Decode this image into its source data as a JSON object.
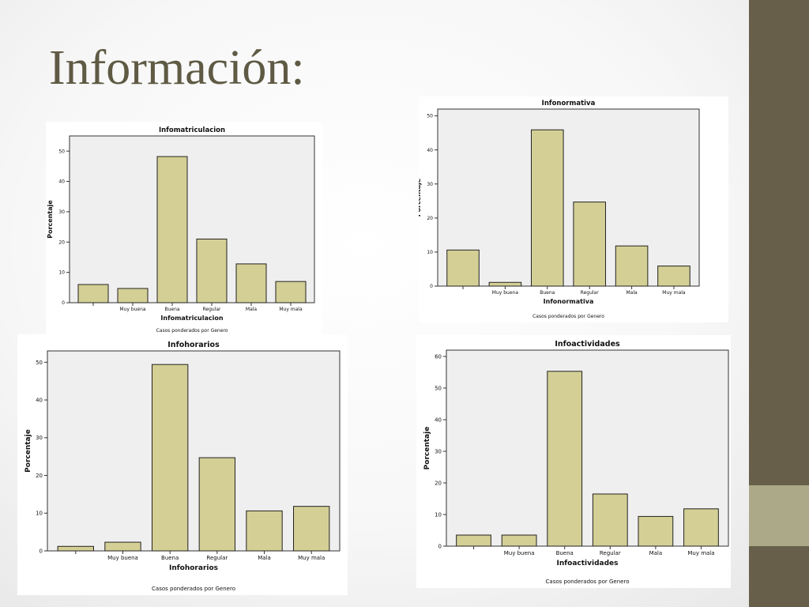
{
  "slide": {
    "title": "Información:",
    "colors": {
      "sidebar": "#675f4a",
      "sidebar_accent": "#aba987",
      "bar_fill": "#d4cf95",
      "plot_bg": "#efefef"
    }
  },
  "chart_data": [
    {
      "type": "bar",
      "title": "Infomatriculacion",
      "xlabel": "Infomatriculacion",
      "ylabel": "Porcentaje",
      "footnote": "Casos ponderados por Genero",
      "categories": [
        "",
        "Muy buena",
        "Buena",
        "Regular",
        "Mala",
        "Muy mala"
      ],
      "values": [
        6,
        4.7,
        48.2,
        21,
        12.8,
        7
      ],
      "ylim": [
        0,
        55
      ],
      "yticks": [
        0,
        10,
        20,
        30,
        40,
        50
      ]
    },
    {
      "type": "bar",
      "title": "Infonormativa",
      "xlabel": "Infonormativa",
      "ylabel": "Porcentaje",
      "footnote": "Casos ponderados por Genero",
      "categories": [
        "",
        "Muy buena",
        "Buena",
        "Regular",
        "Mala",
        "Muy mala"
      ],
      "values": [
        10.6,
        1.1,
        45.9,
        24.7,
        11.8,
        5.9
      ],
      "ylim": [
        0,
        52
      ],
      "yticks": [
        0,
        10,
        20,
        30,
        40,
        50
      ]
    },
    {
      "type": "bar",
      "title": "Infohorarios",
      "xlabel": "Infohorarios",
      "ylabel": "Porcentaje",
      "footnote": "Casos ponderados por Genero",
      "categories": [
        "",
        "Muy buena",
        "Buena",
        "Regular",
        "Mala",
        "Muy mala"
      ],
      "values": [
        1.2,
        2.3,
        49.4,
        24.7,
        10.6,
        11.8
      ],
      "ylim": [
        0,
        53
      ],
      "yticks": [
        0,
        10,
        20,
        30,
        40,
        50
      ]
    },
    {
      "type": "bar",
      "title": "Infoactividades",
      "xlabel": "Infoactividades",
      "ylabel": "Porcentaje",
      "footnote": "Casos ponderados por Genero",
      "categories": [
        "",
        "Muy buena",
        "Buena",
        "Regular",
        "Mala",
        "Muy mala"
      ],
      "values": [
        3.5,
        3.5,
        55.3,
        16.5,
        9.4,
        11.8
      ],
      "ylim": [
        0,
        62
      ],
      "yticks": [
        0,
        10,
        20,
        30,
        40,
        50,
        60
      ]
    }
  ]
}
